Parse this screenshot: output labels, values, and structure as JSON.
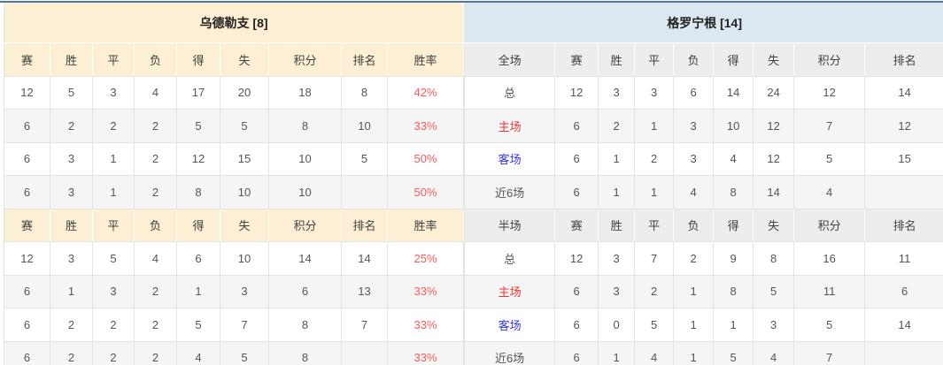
{
  "left_team": {
    "title": "乌德勒支 [8]",
    "header": [
      "赛",
      "胜",
      "平",
      "负",
      "得",
      "失",
      "积分",
      "排名",
      "胜率"
    ],
    "full_rows": [
      [
        "12",
        "5",
        "3",
        "4",
        "17",
        "20",
        "18",
        "8",
        "42%"
      ],
      [
        "6",
        "2",
        "2",
        "2",
        "5",
        "5",
        "8",
        "10",
        "33%"
      ],
      [
        "6",
        "3",
        "1",
        "2",
        "12",
        "15",
        "10",
        "5",
        "50%"
      ],
      [
        "6",
        "3",
        "1",
        "2",
        "8",
        "10",
        "10",
        "",
        "50%"
      ]
    ],
    "half_rows": [
      [
        "12",
        "3",
        "5",
        "4",
        "6",
        "10",
        "14",
        "14",
        "25%"
      ],
      [
        "6",
        "1",
        "3",
        "2",
        "1",
        "3",
        "6",
        "13",
        "33%"
      ],
      [
        "6",
        "2",
        "2",
        "2",
        "5",
        "7",
        "8",
        "7",
        "33%"
      ],
      [
        "6",
        "2",
        "2",
        "2",
        "4",
        "5",
        "8",
        "",
        "33%"
      ]
    ]
  },
  "right_team": {
    "title": "格罗宁根 [14]",
    "scope_full": "全场",
    "scope_half": "半场",
    "header": [
      "赛",
      "胜",
      "平",
      "负",
      "得",
      "失",
      "积分",
      "排名"
    ],
    "full_rows": [
      {
        "label": "总",
        "type": "total",
        "cells": [
          "12",
          "3",
          "3",
          "6",
          "14",
          "24",
          "12",
          "14"
        ]
      },
      {
        "label": "主场",
        "type": "home",
        "cells": [
          "6",
          "2",
          "1",
          "3",
          "10",
          "12",
          "7",
          "12"
        ]
      },
      {
        "label": "客场",
        "type": "away",
        "cells": [
          "6",
          "1",
          "2",
          "3",
          "4",
          "12",
          "5",
          "15"
        ]
      },
      {
        "label": "近6场",
        "type": "last6",
        "cells": [
          "6",
          "1",
          "1",
          "4",
          "8",
          "14",
          "4",
          ""
        ]
      }
    ],
    "half_rows": [
      {
        "label": "总",
        "type": "total",
        "cells": [
          "12",
          "3",
          "7",
          "2",
          "9",
          "8",
          "16",
          "11"
        ]
      },
      {
        "label": "主场",
        "type": "home",
        "cells": [
          "6",
          "3",
          "2",
          "1",
          "8",
          "5",
          "11",
          "6"
        ]
      },
      {
        "label": "客场",
        "type": "away",
        "cells": [
          "6",
          "0",
          "5",
          "1",
          "1",
          "3",
          "5",
          "14"
        ]
      },
      {
        "label": "近6场",
        "type": "last6",
        "cells": [
          "6",
          "1",
          "4",
          "1",
          "5",
          "4",
          "7",
          ""
        ]
      }
    ]
  },
  "colors": {
    "accent_top_border": "#4879a9",
    "left_title_bg": "#fcefd4",
    "right_title_bg": "#dce8ef",
    "right_header_bg": "#ededed",
    "alt_row_bg": "#f5f5f5",
    "home_label": "#ee3434",
    "away_label": "#3434ee",
    "win_rate": "#fa5a5a"
  }
}
